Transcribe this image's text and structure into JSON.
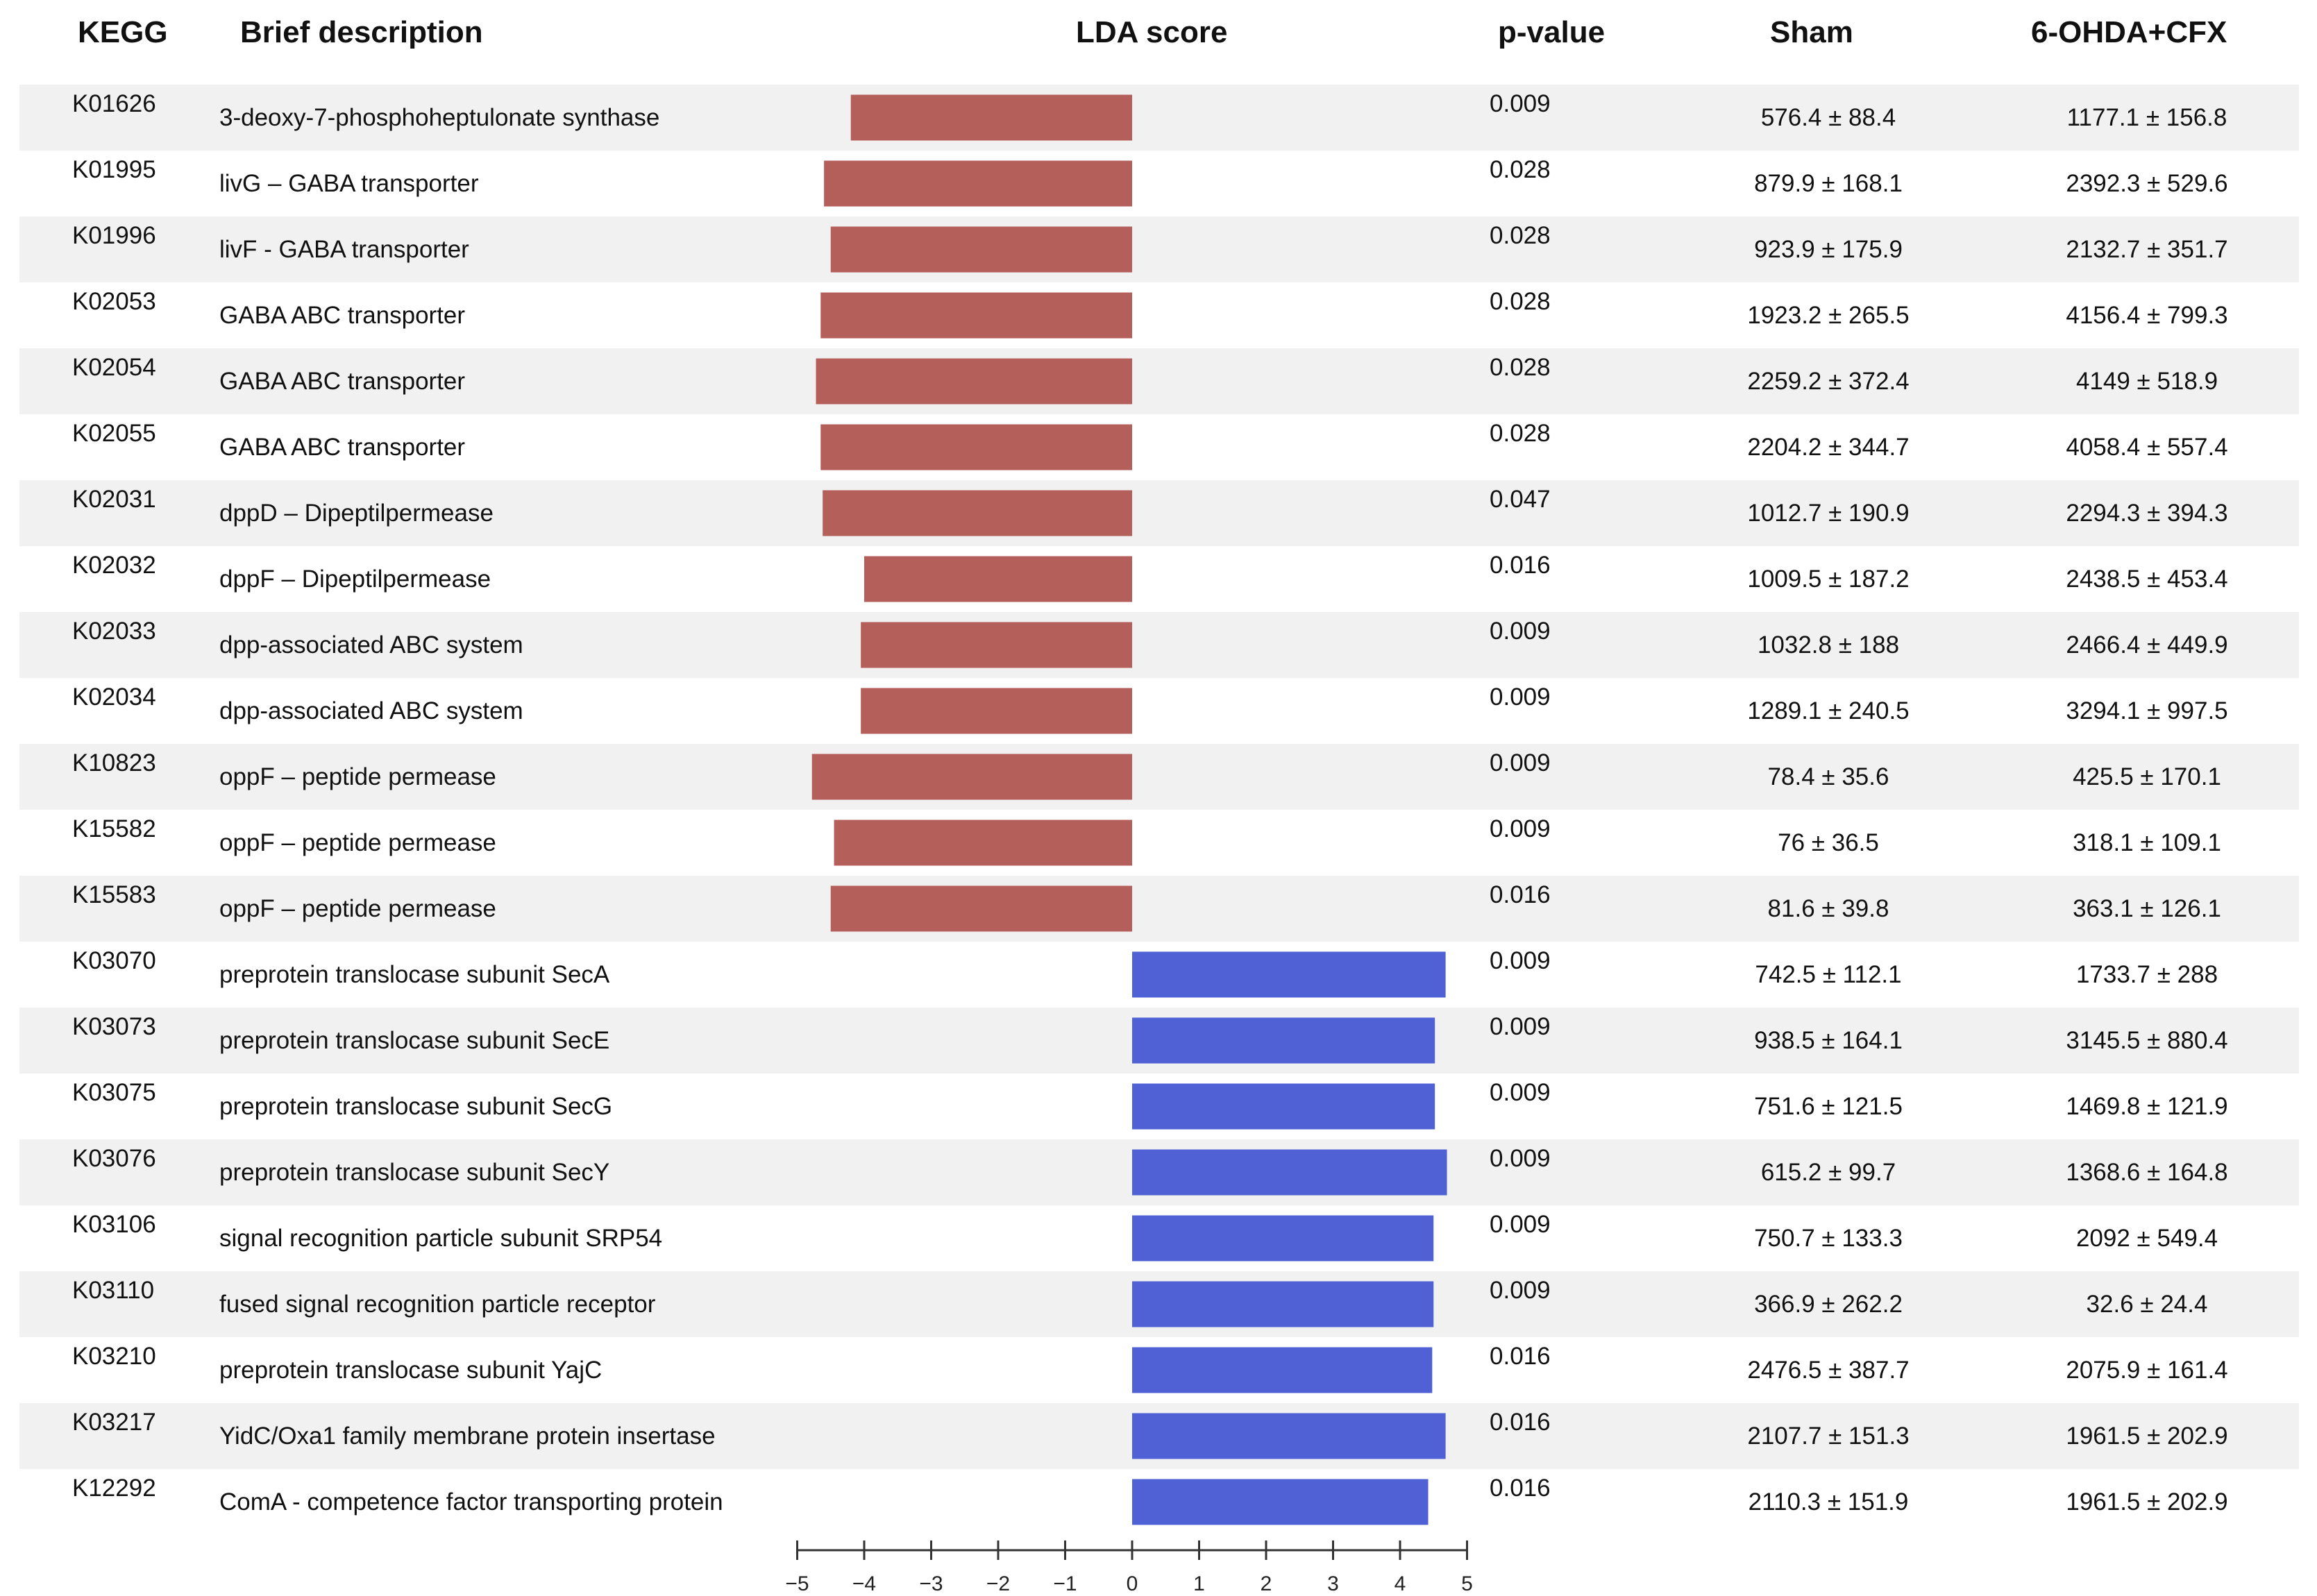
{
  "headers": {
    "kegg": "KEGG",
    "description": "Brief description",
    "lda": "LDA score",
    "pvalue": "p-value",
    "sham": "Sham",
    "cfx": "6-OHDA+CFX"
  },
  "colors": {
    "negative": "#b55f5b",
    "positive": "#4f61d4",
    "row_shade": "#f1f1f1"
  },
  "rows": [
    {
      "kegg": "K01626",
      "desc": "3-deoxy-7-phosphoheptulonate synthase",
      "lda": -4.2,
      "p": "0.009",
      "sham": "576.4 ± 88.4",
      "cfx": "1177.1 ± 156.8"
    },
    {
      "kegg": "K01995",
      "desc": "livG – GABA transporter",
      "lda": -4.6,
      "p": "0.028",
      "sham": "879.9 ± 168.1",
      "cfx": "2392.3 ± 529.6"
    },
    {
      "kegg": "K01996",
      "desc": "livF - GABA transporter",
      "lda": -4.5,
      "p": "0.028",
      "sham": "923.9 ± 175.9",
      "cfx": "2132.7 ± 351.7"
    },
    {
      "kegg": "K02053",
      "desc": "GABA ABC transporter",
      "lda": -4.65,
      "p": "0.028",
      "sham": "1923.2 ± 265.5",
      "cfx": "4156.4 ± 799.3"
    },
    {
      "kegg": "K02054",
      "desc": "GABA ABC transporter",
      "lda": -4.72,
      "p": "0.028",
      "sham": "2259.2 ± 372.4",
      "cfx": "4149 ± 518.9"
    },
    {
      "kegg": "K02055",
      "desc": "GABA ABC transporter",
      "lda": -4.65,
      "p": "0.028",
      "sham": "2204.2 ± 344.7",
      "cfx": "4058.4 ± 557.4"
    },
    {
      "kegg": "K02031",
      "desc": "dppD – Dipeptilpermease",
      "lda": -4.62,
      "p": "0.047",
      "sham": "1012.7 ± 190.9",
      "cfx": "2294.3 ± 394.3"
    },
    {
      "kegg": "K02032",
      "desc": "dppF – Dipeptilpermease",
      "lda": -4.0,
      "p": "0.016",
      "sham": "1009.5 ± 187.2",
      "cfx": "2438.5 ± 453.4"
    },
    {
      "kegg": "K02033",
      "desc": "dpp-associated ABC system",
      "lda": -4.05,
      "p": "0.009",
      "sham": "1032.8 ± 188",
      "cfx": "2466.4 ± 449.9"
    },
    {
      "kegg": "K02034",
      "desc": "dpp-associated ABC system",
      "lda": -4.05,
      "p": "0.009",
      "sham": "1289.1 ± 240.5",
      "cfx": "3294.1 ± 997.5"
    },
    {
      "kegg": "K10823",
      "desc": "oppF – peptide permease",
      "lda": -4.78,
      "p": "0.009",
      "sham": "78.4 ± 35.6",
      "cfx": "425.5 ± 170.1"
    },
    {
      "kegg": "K15582",
      "desc": "oppF – peptide permease",
      "lda": -4.45,
      "p": "0.009",
      "sham": "76 ± 36.5",
      "cfx": "318.1 ± 109.1"
    },
    {
      "kegg": "K15583",
      "desc": "oppF – peptide permease",
      "lda": -4.5,
      "p": "0.016",
      "sham": "81.6 ± 39.8",
      "cfx": "363.1 ± 126.1"
    },
    {
      "kegg": "K03070",
      "desc": "preprotein translocase subunit SecA",
      "lda": 4.68,
      "p": "0.009",
      "sham": "742.5 ± 112.1",
      "cfx": "1733.7 ± 288"
    },
    {
      "kegg": "K03073",
      "desc": "preprotein translocase subunit SecE",
      "lda": 4.52,
      "p": "0.009",
      "sham": "938.5 ± 164.1",
      "cfx": "3145.5 ± 880.4"
    },
    {
      "kegg": "K03075",
      "desc": "preprotein translocase subunit SecG",
      "lda": 4.52,
      "p": "0.009",
      "sham": "751.6 ± 121.5",
      "cfx": "1469.8 ± 121.9"
    },
    {
      "kegg": "K03076",
      "desc": "preprotein translocase subunit SecY",
      "lda": 4.7,
      "p": "0.009",
      "sham": "615.2 ± 99.7",
      "cfx": "1368.6 ± 164.8"
    },
    {
      "kegg": "K03106",
      "desc": "signal recognition particle subunit SRP54",
      "lda": 4.5,
      "p": "0.009",
      "sham": "750.7 ± 133.3",
      "cfx": "2092 ± 549.4"
    },
    {
      "kegg": "K03110",
      "desc": "fused signal recognition particle receptor",
      "lda": 4.5,
      "p": "0.009",
      "sham": "366.9 ± 262.2",
      "cfx": "32.6 ± 24.4"
    },
    {
      "kegg": "K03210",
      "desc": "preprotein translocase subunit YajC",
      "lda": 4.48,
      "p": "0.016",
      "sham": "2476.5 ± 387.7",
      "cfx": "2075.9 ± 161.4"
    },
    {
      "kegg": "K03217",
      "desc": "YidC/Oxa1 family membrane protein insertase",
      "lda": 4.68,
      "p": "0.016",
      "sham": "2107.7 ± 151.3",
      "cfx": "1961.5 ± 202.9"
    },
    {
      "kegg": "K12292",
      "desc": "ComA - competence factor transporting protein",
      "lda": 4.42,
      "p": "0.016",
      "sham": "2110.3 ± 151.9",
      "cfx": "1961.5 ± 202.9"
    }
  ],
  "chart_data": {
    "type": "bar",
    "orientation": "horizontal",
    "title": "LDA score",
    "xlabel": "",
    "ylabel": "",
    "xlim": [
      -5,
      5
    ],
    "x_ticks": [
      -5,
      -4,
      -3,
      -2,
      -1,
      0,
      1,
      2,
      3,
      4,
      5
    ],
    "x_tick_labels": [
      "−5",
      "−4",
      "−3",
      "−2",
      "−1",
      "0",
      "1",
      "2",
      "3",
      "4",
      "5"
    ],
    "grid": false,
    "categories": [
      "K01626",
      "K01995",
      "K01996",
      "K02053",
      "K02054",
      "K02055",
      "K02031",
      "K02032",
      "K02033",
      "K02034",
      "K10823",
      "K15582",
      "K15583",
      "K03070",
      "K03073",
      "K03075",
      "K03076",
      "K03106",
      "K03110",
      "K03210",
      "K03217",
      "K12292"
    ],
    "values": [
      -4.2,
      -4.6,
      -4.5,
      -4.65,
      -4.72,
      -4.65,
      -4.62,
      -4.0,
      -4.05,
      -4.05,
      -4.78,
      -4.45,
      -4.5,
      4.68,
      4.52,
      4.52,
      4.7,
      4.5,
      4.5,
      4.48,
      4.68,
      4.42
    ]
  }
}
